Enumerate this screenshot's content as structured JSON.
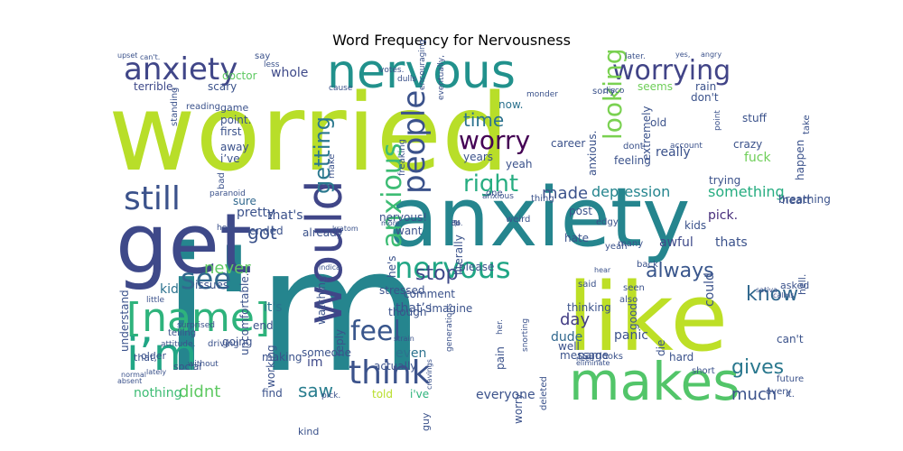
{
  "chart_data": {
    "type": "wordcloud",
    "title": "Word Frequency for Nervousness",
    "background": "#ffffff",
    "colormap": "viridis",
    "words": [
      {
        "text": "worried",
        "weight": 100,
        "color": "#b8de29"
      },
      {
        "text": "i'm",
        "weight": 98,
        "color": "#25858e"
      },
      {
        "text": "anxiety",
        "weight": 72,
        "color": "#25858e"
      },
      {
        "text": "get",
        "weight": 66,
        "color": "#3e4989"
      },
      {
        "text": "like",
        "weight": 60,
        "color": "#bddf26"
      },
      {
        "text": "makes",
        "weight": 45,
        "color": "#52c569"
      },
      {
        "text": "nervous",
        "weight": 42,
        "color": "#21918c"
      },
      {
        "text": "would",
        "weight": 40,
        "color": "#404688"
      },
      {
        "text": "anxiety",
        "weight": 30,
        "color": "#404688"
      },
      {
        "text": "worrying",
        "weight": 27,
        "color": "#414487"
      },
      {
        "text": "still",
        "weight": 28,
        "color": "#3b528b"
      },
      {
        "text": "[name]",
        "weight": 30,
        "color": "#2eb37c"
      },
      {
        "text": "i’m",
        "weight": 30,
        "color": "#21a685"
      },
      {
        "text": "nervous",
        "weight": 26,
        "color": "#21a685"
      },
      {
        "text": "think",
        "weight": 26,
        "color": "#3b528b"
      },
      {
        "text": "feel",
        "weight": 24,
        "color": "#39568c"
      },
      {
        "text": "see",
        "weight": 24,
        "color": "#31688e"
      },
      {
        "text": "people",
        "weight": 24,
        "color": "#3b528b"
      },
      {
        "text": "anxious",
        "weight": 22,
        "color": "#3dbc74"
      },
      {
        "text": "worry",
        "weight": 22,
        "color": "#440154"
      },
      {
        "text": "right",
        "weight": 20,
        "color": "#27ad81"
      },
      {
        "text": "always",
        "weight": 19,
        "color": "#39568c"
      },
      {
        "text": "getting",
        "weight": 19,
        "color": "#2a788e"
      },
      {
        "text": "gives",
        "weight": 18,
        "color": "#2a788e"
      },
      {
        "text": "looking",
        "weight": 18,
        "color": "#7ad151"
      },
      {
        "text": "stop",
        "weight": 17,
        "color": "#3e4989"
      },
      {
        "text": "know",
        "weight": 17,
        "color": "#31688e"
      },
      {
        "text": "much",
        "weight": 17,
        "color": "#3b528b"
      },
      {
        "text": "saw",
        "weight": 17,
        "color": "#287d8e"
      },
      {
        "text": "got",
        "weight": 16,
        "color": "#3b528b"
      },
      {
        "text": "never",
        "weight": 15,
        "color": "#5ec962"
      },
      {
        "text": "made",
        "weight": 15,
        "color": "#3b528b"
      },
      {
        "text": "time",
        "weight": 15,
        "color": "#2c728e"
      },
      {
        "text": "day",
        "weight": 15,
        "color": "#433e85"
      },
      {
        "text": "didnt",
        "weight": 14,
        "color": "#5ec962"
      },
      {
        "text": "depression",
        "weight": 13,
        "color": "#25858e"
      },
      {
        "text": "something",
        "weight": 12,
        "color": "#27ad81"
      },
      {
        "text": "whole",
        "weight": 12,
        "color": "#3e4989"
      },
      {
        "text": "really",
        "weight": 12,
        "color": "#3b528b"
      },
      {
        "text": "could",
        "weight": 12,
        "color": "#3b528b"
      },
      {
        "text": "panic",
        "weight": 12,
        "color": "#3b528b"
      },
      {
        "text": "im",
        "weight": 11,
        "color": "#3e4989"
      },
      {
        "text": "even",
        "weight": 11,
        "color": "#2c728e"
      },
      {
        "text": "everyone",
        "weight": 11,
        "color": "#3b528b"
      },
      {
        "text": "nothing",
        "weight": 11,
        "color": "#3dbc74"
      },
      {
        "text": "fuck",
        "weight": 10,
        "color": "#6ece58"
      },
      {
        "text": "kid",
        "weight": 10,
        "color": "#2c728e"
      },
      {
        "text": "awful",
        "weight": 10,
        "color": "#3e4989"
      },
      {
        "text": "thats",
        "weight": 10,
        "color": "#3b528b"
      },
      {
        "text": "pick.",
        "weight": 10,
        "color": "#472d7b"
      },
      {
        "text": "dude",
        "weight": 10,
        "color": "#31688e"
      },
      {
        "text": "it's",
        "weight": 10,
        "color": "#2c728e"
      },
      {
        "text": "that's",
        "weight": 10,
        "color": "#3b528b"
      },
      {
        "text": "that’s",
        "weight": 10,
        "color": "#3b528b"
      },
      {
        "text": "pretty",
        "weight": 10,
        "color": "#3b528b"
      },
      {
        "text": "sure",
        "weight": 9,
        "color": "#31688e"
      },
      {
        "text": "scary",
        "weight": 9,
        "color": "#3b528b"
      },
      {
        "text": "terrible.",
        "weight": 9,
        "color": "#3e4989"
      },
      {
        "text": "doctor",
        "weight": 9,
        "color": "#5ec962"
      },
      {
        "text": "seems",
        "weight": 9,
        "color": "#6ece58"
      },
      {
        "text": "rain",
        "weight": 9,
        "color": "#3b528b"
      },
      {
        "text": "don't",
        "weight": 9,
        "color": "#3b528b"
      },
      {
        "text": "stuff",
        "weight": 9,
        "color": "#3b528b"
      },
      {
        "text": "crazy",
        "weight": 9,
        "color": "#3b528b"
      },
      {
        "text": "years",
        "weight": 9,
        "color": "#3b528b"
      },
      {
        "text": "yeah",
        "weight": 9,
        "color": "#3b528b"
      },
      {
        "text": "career",
        "weight": 9,
        "color": "#3b528b"
      },
      {
        "text": "old",
        "weight": 9,
        "color": "#3b528b"
      },
      {
        "text": "now.",
        "weight": 9,
        "color": "#2c728e"
      },
      {
        "text": "away",
        "weight": 9,
        "color": "#3b528b"
      },
      {
        "text": "i’ve",
        "weight": 9,
        "color": "#3b528b"
      },
      {
        "text": "first",
        "weight": 8,
        "color": "#3b528b"
      },
      {
        "text": "point.",
        "weight": 9,
        "color": "#3b528b"
      },
      {
        "text": "ended",
        "weight": 8,
        "color": "#3b528b"
      },
      {
        "text": "end",
        "weight": 8,
        "color": "#3b528b"
      },
      {
        "text": "going",
        "weight": 9,
        "color": "#3b528b"
      },
      {
        "text": "someone",
        "weight": 9,
        "color": "#3b528b"
      },
      {
        "text": "making",
        "weight": 9,
        "color": "#3b528b"
      },
      {
        "text": "find",
        "weight": 9,
        "color": "#3b528b"
      },
      {
        "text": "told",
        "weight": 9,
        "color": "#b8de29"
      },
      {
        "text": "i've",
        "weight": 9,
        "color": "#2eb37c"
      },
      {
        "text": "can't",
        "weight": 9,
        "color": "#3b528b"
      },
      {
        "text": "hard",
        "weight": 9,
        "color": "#3b528b"
      },
      {
        "text": "name",
        "weight": 9,
        "color": "#3b528b"
      },
      {
        "text": "message",
        "weight": 9,
        "color": "#3b528b"
      },
      {
        "text": "well",
        "weight": 9,
        "color": "#3b528b"
      },
      {
        "text": "good",
        "weight": 8,
        "color": "#3b528b"
      },
      {
        "text": "die",
        "weight": 8,
        "color": "#3b528b"
      },
      {
        "text": "thinking",
        "weight": 8,
        "color": "#3b528b"
      },
      {
        "text": "comment",
        "weight": 8,
        "color": "#3b528b"
      },
      {
        "text": "imagine",
        "weight": 8,
        "color": "#3b528b"
      },
      {
        "text": "want",
        "weight": 8,
        "color": "#3b528b"
      },
      {
        "text": "happen",
        "weight": 8,
        "color": "#3b528b"
      },
      {
        "text": "breathing",
        "weight": 8,
        "color": "#3b528b"
      },
      {
        "text": "heart",
        "weight": 8,
        "color": "#3b528b"
      },
      {
        "text": "trying",
        "weight": 8,
        "color": "#3b528b"
      },
      {
        "text": "kids",
        "weight": 8,
        "color": "#3b528b"
      },
      {
        "text": "nervous!",
        "weight": 8,
        "color": "#3b528b"
      },
      {
        "text": "hate",
        "weight": 8,
        "color": "#3b528b"
      },
      {
        "text": "post",
        "weight": 8,
        "color": "#3b528b"
      },
      {
        "text": "hell.",
        "weight": 8,
        "color": "#3b528b"
      },
      {
        "text": "asked",
        "weight": 7,
        "color": "#3b528b"
      },
      {
        "text": "anxious.",
        "weight": 7,
        "color": "#3b528b"
      },
      {
        "text": "extremely",
        "weight": 7,
        "color": "#3b528b"
      },
      {
        "text": "feeling",
        "weight": 7,
        "color": "#3b528b"
      },
      {
        "text": "pain",
        "weight": 7,
        "color": "#3b528b"
      },
      {
        "text": "worry.",
        "weight": 7,
        "color": "#3b528b"
      },
      {
        "text": "literally",
        "weight": 7,
        "color": "#3b528b"
      },
      {
        "text": "please",
        "weight": 7,
        "color": "#3b528b"
      },
      {
        "text": "guy",
        "weight": 7,
        "color": "#3b528b"
      },
      {
        "text": "already",
        "weight": 7,
        "color": "#3b528b"
      },
      {
        "text": "stressed",
        "weight": 7,
        "color": "#3b528b"
      },
      {
        "text": "he's",
        "weight": 7,
        "color": "#3b528b"
      },
      {
        "text": "uncomfortable.",
        "weight": 7,
        "color": "#3b528b"
      },
      {
        "text": "reply",
        "weight": 7,
        "color": "#3b528b"
      },
      {
        "text": "watching",
        "weight": 7,
        "color": "#3b528b"
      },
      {
        "text": "working",
        "weight": 7,
        "color": "#3b528b"
      },
      {
        "text": "actually",
        "weight": 7,
        "color": "#3b528b"
      },
      {
        "text": "though",
        "weight": 7,
        "color": "#3b528b"
      },
      {
        "text": "issues",
        "weight": 7,
        "color": "#3b528b"
      },
      {
        "text": "understand",
        "weight": 7,
        "color": "#3b528b"
      },
      {
        "text": "older",
        "weight": 7,
        "color": "#3b528b"
      },
      {
        "text": "social",
        "weight": 7,
        "color": "#3b528b"
      },
      {
        "text": "that,",
        "weight": 7,
        "color": "#3b528b"
      },
      {
        "text": "kind",
        "weight": 7,
        "color": "#3b528b"
      },
      {
        "text": "game",
        "weight": 7,
        "color": "#3b528b"
      },
      {
        "text": "standing",
        "weight": 7,
        "color": "#3b528b"
      },
      {
        "text": "reading",
        "weight": 6,
        "color": "#3b528b"
      },
      {
        "text": "bad",
        "weight": 6,
        "color": "#3b528b"
      },
      {
        "text": "make",
        "weight": 6,
        "color": "#3b528b"
      },
      {
        "text": "freaking",
        "weight": 6,
        "color": "#3b528b"
      },
      {
        "text": "sorry",
        "weight": 6,
        "color": "#3b528b"
      },
      {
        "text": "take",
        "weight": 6,
        "color": "#3b528b"
      },
      {
        "text": "dont",
        "weight": 6,
        "color": "#3b528b"
      },
      {
        "text": "edgy",
        "weight": 6,
        "color": "#3b528b"
      },
      {
        "text": "thing",
        "weight": 6,
        "color": "#3b528b"
      },
      {
        "text": "weird",
        "weight": 6,
        "color": "#3b528b"
      },
      {
        "text": "one",
        "weight": 6,
        "color": "#3b528b"
      },
      {
        "text": "many",
        "weight": 6,
        "color": "#3b528b"
      },
      {
        "text": "yeah",
        "weight": 6,
        "color": "#3b528b"
      },
      {
        "text": "back",
        "weight": 6,
        "color": "#3b528b"
      },
      {
        "text": "seen",
        "weight": 6,
        "color": "#3b528b"
      },
      {
        "text": "also",
        "weight": 6,
        "color": "#3b528b"
      },
      {
        "text": "said",
        "weight": 6,
        "color": "#3b528b"
      },
      {
        "text": "looks",
        "weight": 6,
        "color": "#3b528b"
      },
      {
        "text": "short",
        "weight": 6,
        "color": "#3b528b"
      },
      {
        "text": "deleted",
        "weight": 6,
        "color": "#3b528b"
      },
      {
        "text": "telling",
        "weight": 6,
        "color": "#3b528b"
      },
      {
        "text": "driving",
        "weight": 6,
        "color": "#3b528b"
      },
      {
        "text": "without",
        "weight": 6,
        "color": "#3b528b"
      },
      {
        "text": "attitude.",
        "weight": 6,
        "color": "#3b528b"
      },
      {
        "text": "surprised",
        "weight": 5,
        "color": "#3b528b"
      },
      {
        "text": "little",
        "weight": 5,
        "color": "#3b528b"
      },
      {
        "text": "here.",
        "weight": 5,
        "color": "#3b528b"
      },
      {
        "text": "pick.",
        "weight": 5,
        "color": "#3b528b"
      },
      {
        "text": "every",
        "weight": 5,
        "color": "#3b528b"
      },
      {
        "text": "future",
        "weight": 5,
        "color": "#3b528b"
      },
      {
        "text": "it.",
        "weight": 5,
        "color": "#3b528b"
      },
      {
        "text": "say",
        "weight": 5,
        "color": "#3b528b"
      },
      {
        "text": "less",
        "weight": 5,
        "color": "#3b528b"
      },
      {
        "text": "cause",
        "weight": 5,
        "color": "#3b528b"
      },
      {
        "text": "votes.",
        "weight": 5,
        "color": "#3b528b"
      },
      {
        "text": "dulls",
        "weight": 5,
        "color": "#3b528b"
      },
      {
        "text": "monder",
        "weight": 5,
        "color": "#3b528b"
      },
      {
        "text": "disco",
        "weight": 5,
        "color": "#3b528b"
      },
      {
        "text": "point",
        "weight": 5,
        "color": "#3b528b"
      },
      {
        "text": "account",
        "weight": 5,
        "color": "#3b528b"
      },
      {
        "text": "later.",
        "weight": 5,
        "color": "#3b528b"
      },
      {
        "text": "upset",
        "weight": 5,
        "color": "#3b528b"
      },
      {
        "text": "can't.",
        "weight": 5,
        "color": "#3b528b"
      },
      {
        "text": "yes,",
        "weight": 5,
        "color": "#3b528b"
      },
      {
        "text": "angry",
        "weight": 5,
        "color": "#3b528b"
      },
      {
        "text": "paranoid",
        "weight": 5,
        "color": "#3b528b"
      },
      {
        "text": "anxious",
        "weight": 5,
        "color": "#3b528b"
      },
      {
        "text": "her.",
        "weight": 5,
        "color": "#3b528b"
      },
      {
        "text": "snorting",
        "weight": 5,
        "color": "#3b528b"
      },
      {
        "text": "generations",
        "weight": 5,
        "color": "#3b528b"
      },
      {
        "text": "eventually,",
        "weight": 5,
        "color": "#3b528b"
      },
      {
        "text": "encouraging",
        "weight": 5,
        "color": "#3b528b"
      },
      {
        "text": "lately",
        "weight": 5,
        "color": "#3b528b"
      },
      {
        "text": "kratom",
        "weight": 5,
        "color": "#3b528b"
      },
      {
        "text": "indica",
        "weight": 5,
        "color": "#3b528b"
      },
      {
        "text": "sativa",
        "weight": 5,
        "color": "#3b528b"
      },
      {
        "text": "calms",
        "weight": 5,
        "color": "#3b528b"
      },
      {
        "text": "hear",
        "weight": 5,
        "color": "#3b528b"
      },
      {
        "text": "need",
        "weight": 5,
        "color": "#3b528b"
      },
      {
        "text": "absent",
        "weight": 5,
        "color": "#3b528b"
      },
      {
        "text": "normal",
        "weight": 5,
        "color": "#3b528b"
      },
      {
        "text": "eliminate",
        "weight": 5,
        "color": "#3b528b"
      },
      {
        "text": "strain",
        "weight": 5,
        "color": "#3b528b"
      },
      {
        "text": "cravings",
        "weight": 5,
        "color": "#3b528b"
      },
      {
        "text": "more",
        "weight": 5,
        "color": "#3b528b"
      },
      {
        "text": "do.",
        "weight": 5,
        "color": "#3b528b"
      },
      {
        "text": "i'll",
        "weight": 5,
        "color": "#3b528b"
      },
      {
        "text": "i'd",
        "weight": 5,
        "color": "#3b528b"
      },
      {
        "text": ":(",
        "weight": 5,
        "color": "#3b528b"
      },
      {
        "text": "3",
        "weight": 5,
        "color": "#3b528b"
      }
    ]
  }
}
